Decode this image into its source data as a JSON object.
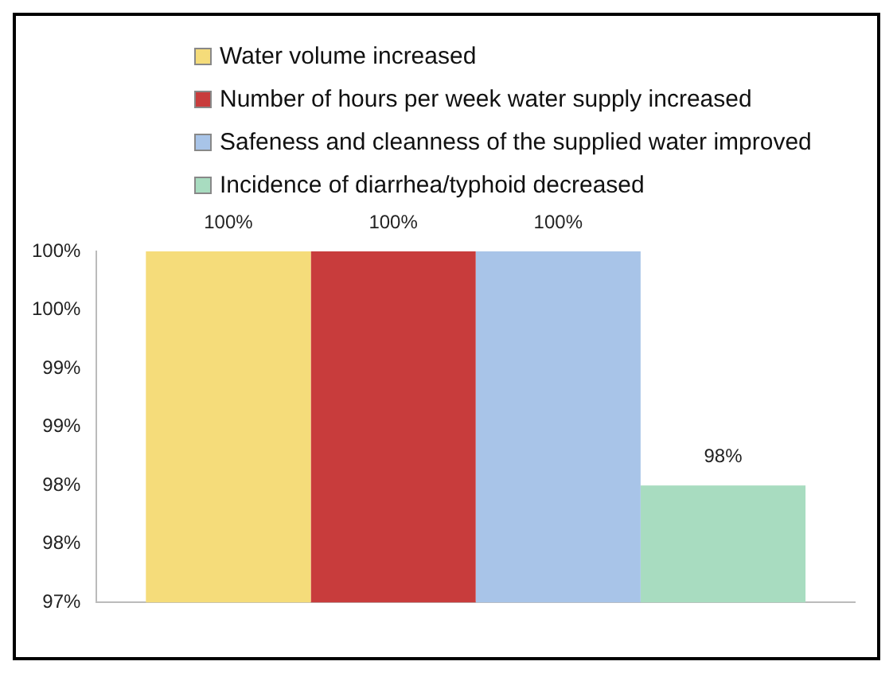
{
  "chart_data": {
    "type": "bar",
    "categories": [
      null
    ],
    "series": [
      {
        "name": "Water volume increased",
        "color": "#f5dc7a",
        "values": [
          100
        ],
        "value_labels": [
          "100%"
        ]
      },
      {
        "name": "Number of hours per week water supply increased",
        "color": "#c83c3c",
        "values": [
          100
        ],
        "value_labels": [
          "100%"
        ]
      },
      {
        "name": "Safeness and cleanness of the supplied water improved",
        "color": "#a8c4e8",
        "values": [
          100
        ],
        "value_labels": [
          "100%"
        ]
      },
      {
        "name": "Incidence of diarrhea/typhoid decreased",
        "color": "#a8dcc0",
        "values": [
          98
        ],
        "value_labels": [
          "98%"
        ]
      }
    ],
    "ylim": [
      97,
      100
    ],
    "yticks": [
      "97%",
      {
        "value": 97.5,
        "label": "98%"
      },
      {
        "value": 98,
        "label": "98%"
      },
      {
        "value": 98.5,
        "label": "99%"
      },
      {
        "value": 99,
        "label": "99%"
      },
      {
        "value": 99.5,
        "label": "100%"
      },
      {
        "value": 100,
        "label": "100%"
      }
    ],
    "grid": false,
    "legend": "top"
  }
}
